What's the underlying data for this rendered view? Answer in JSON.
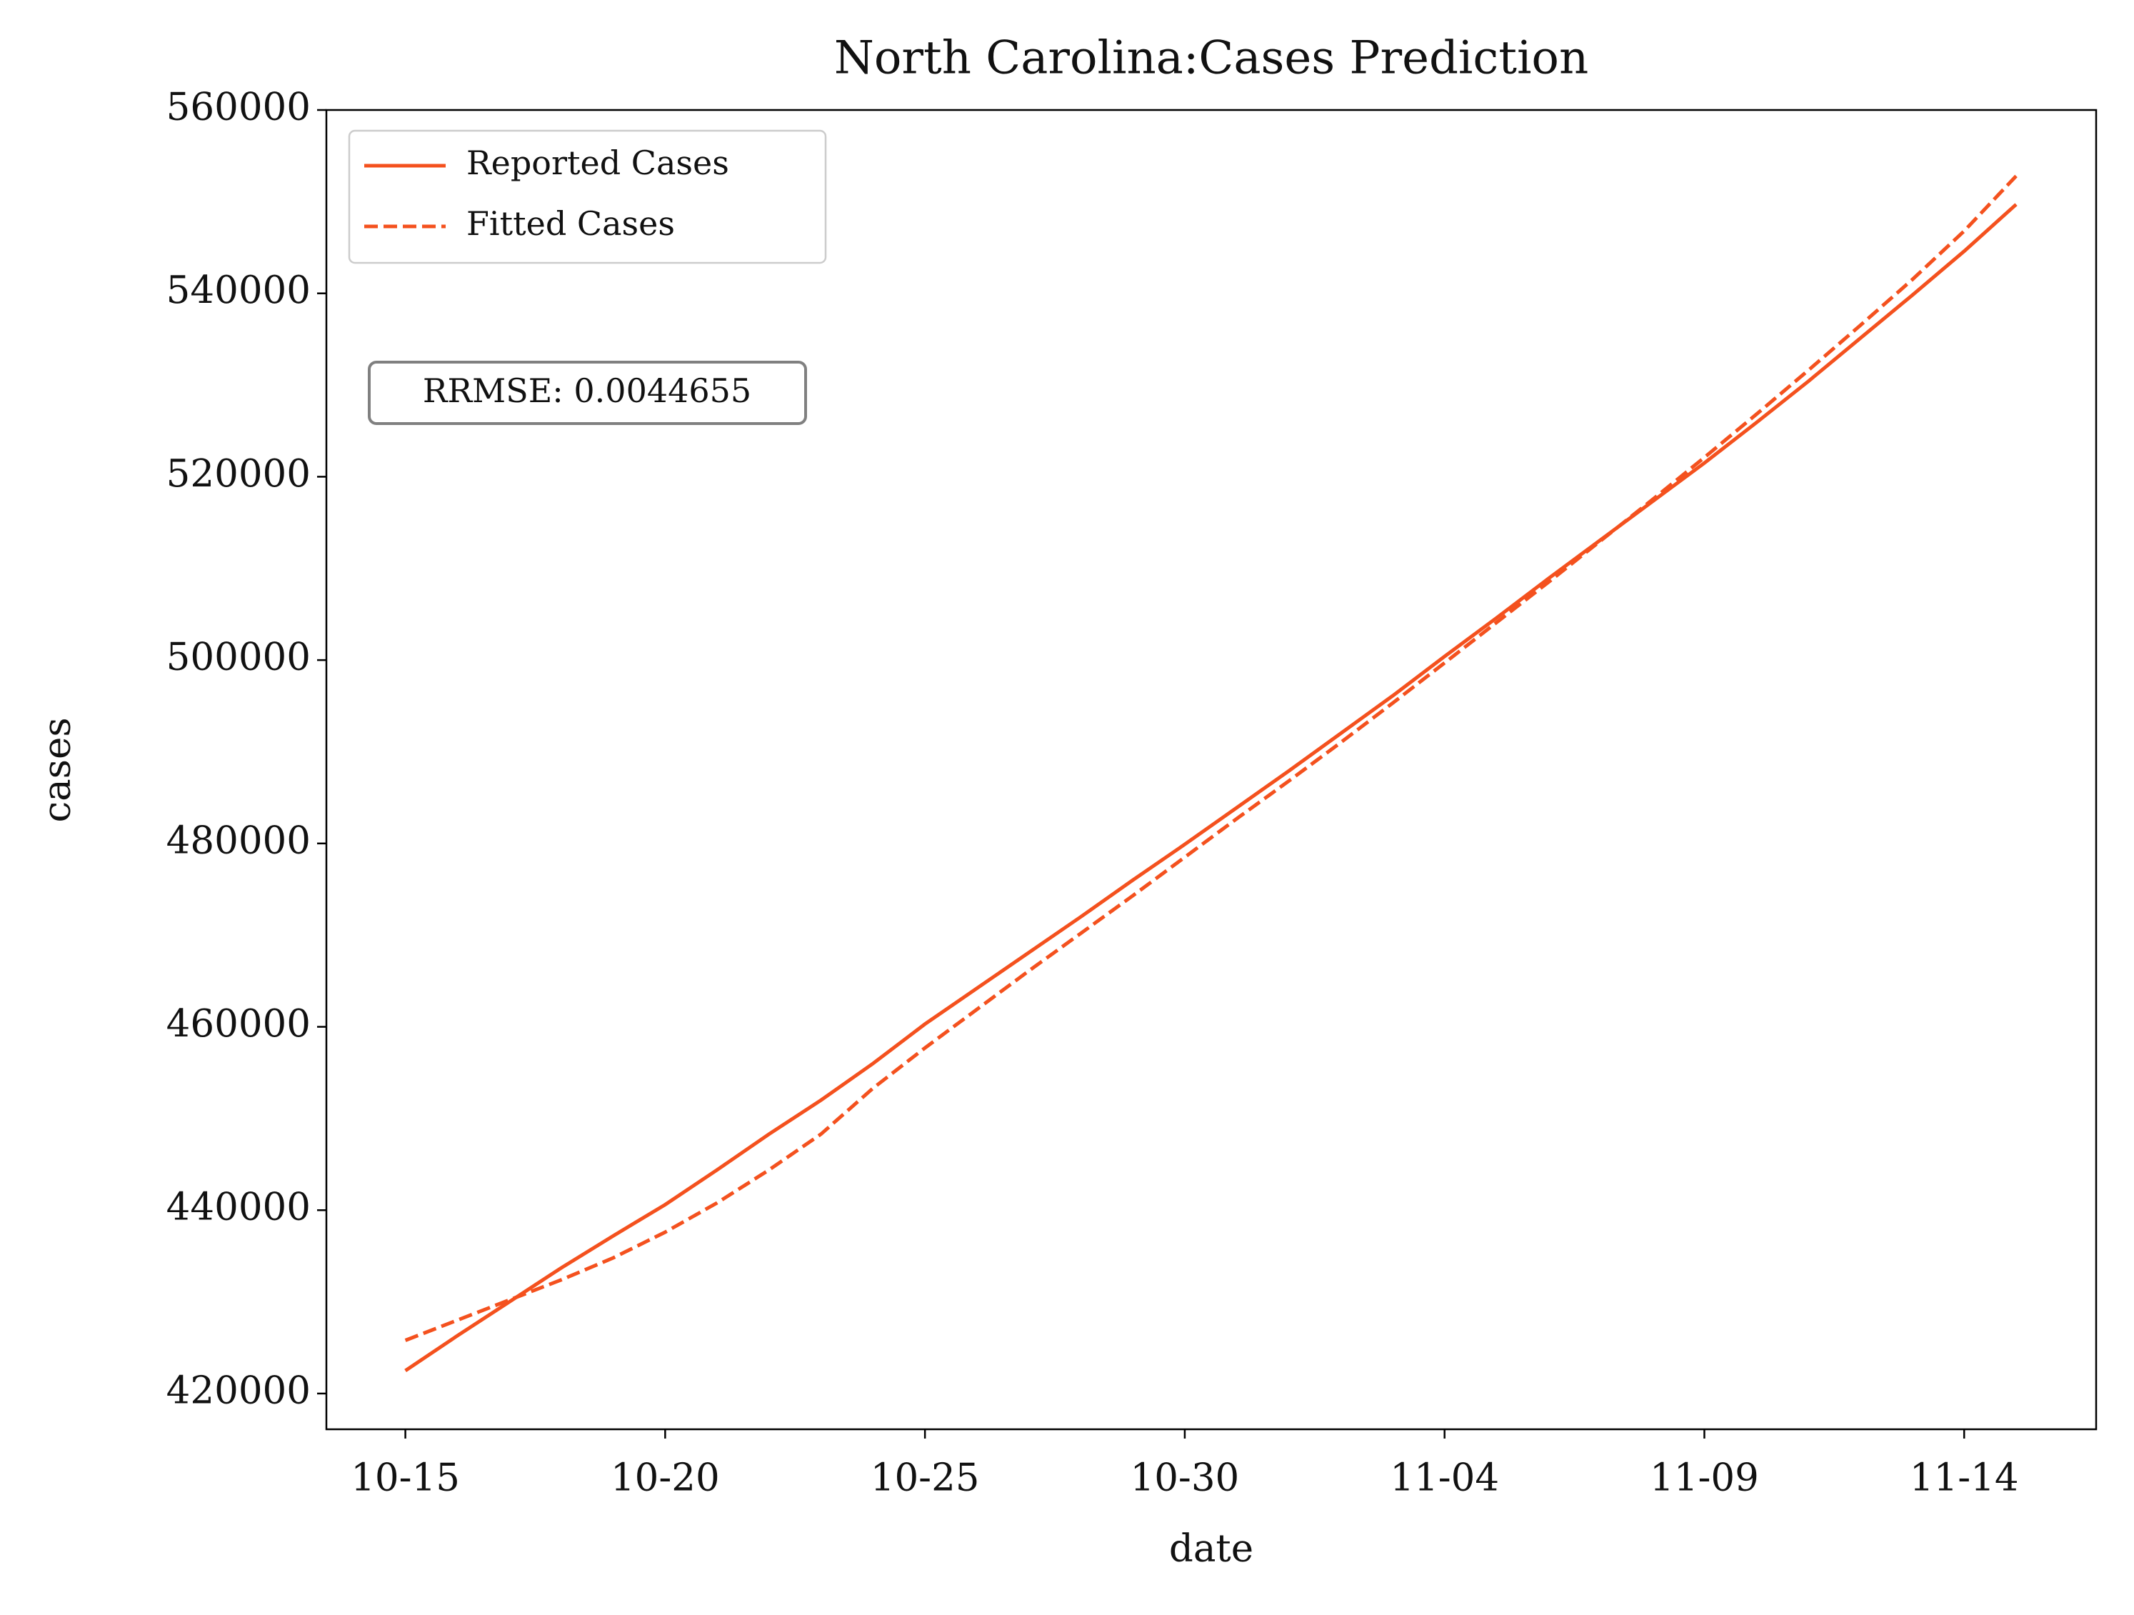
{
  "chart_data": {
    "type": "line",
    "title": "North Carolina:Cases Prediction",
    "xlabel": "date",
    "ylabel": "cases",
    "x": [
      "10-15",
      "10-16",
      "10-17",
      "10-18",
      "10-19",
      "10-20",
      "10-21",
      "10-22",
      "10-23",
      "10-24",
      "10-25",
      "10-26",
      "10-27",
      "10-28",
      "10-29",
      "10-30",
      "10-31",
      "11-01",
      "11-02",
      "11-03",
      "11-04",
      "11-05",
      "11-06",
      "11-07",
      "11-08",
      "11-09",
      "11-10",
      "11-11",
      "11-12",
      "11-13",
      "11-14",
      "11-15"
    ],
    "xticks": [
      "10-15",
      "10-20",
      "10-25",
      "10-30",
      "11-04",
      "11-09",
      "11-14"
    ],
    "series": [
      {
        "name": "Reported Cases",
        "color": "#f4511e",
        "linestyle": "solid",
        "values": [
          422500,
          426300,
          430000,
          433700,
          437200,
          440600,
          444400,
          448300,
          452000,
          456000,
          460300,
          464200,
          468100,
          472000,
          476000,
          479900,
          483900,
          487900,
          492000,
          496100,
          500400,
          504600,
          508900,
          513100,
          517300,
          521500,
          525900,
          530400,
          535100,
          539800,
          544600,
          549700
        ]
      },
      {
        "name": "Fitted Cases",
        "color": "#f4511e",
        "linestyle": "dashed",
        "values": [
          425800,
          428000,
          430200,
          432400,
          434800,
          437600,
          440800,
          444400,
          448300,
          453300,
          457700,
          461900,
          466100,
          470200,
          474300,
          478500,
          482700,
          486800,
          491000,
          495300,
          499700,
          504100,
          508500,
          513000,
          517500,
          522100,
          526800,
          531600,
          536500,
          541500,
          546800,
          552800
        ]
      }
    ],
    "ylim": [
      416100,
      560000
    ],
    "yticks": [
      420000,
      440000,
      460000,
      480000,
      500000,
      520000,
      540000,
      560000
    ],
    "annotation": "RRMSE: 0.0044655",
    "legend": "upper left",
    "grid": false
  }
}
